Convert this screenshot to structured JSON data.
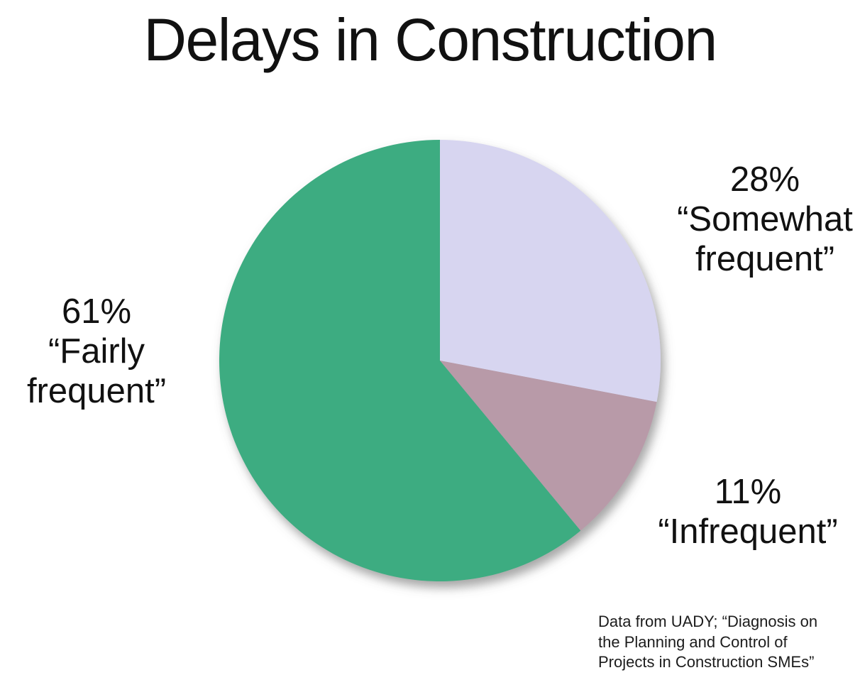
{
  "title": "Delays in Construction",
  "chart_data": {
    "type": "pie",
    "title": "Delays in Construction",
    "start_angle_deg": 0,
    "direction": "clockwise",
    "legend": "none",
    "slices": [
      {
        "label": "Somewhat frequent",
        "value": 28,
        "unit": "%",
        "color": "#d7d5f0",
        "annotation_lines": [
          "28%",
          "“Somewhat",
          "frequent”"
        ]
      },
      {
        "label": "Infrequent",
        "value": 11,
        "unit": "%",
        "color": "#b89aa8",
        "annotation_lines": [
          "11%",
          "“Infrequent”"
        ]
      },
      {
        "label": "Fairly frequent",
        "value": 61,
        "unit": "%",
        "color": "#3eac81",
        "annotation_lines": [
          "61%",
          "“Fairly",
          "frequent”"
        ]
      }
    ]
  },
  "source_note": {
    "lines": [
      "Data from UADY; “Diagnosis on",
      "the Planning and Control of",
      "Projects in Construction SMEs”"
    ]
  }
}
